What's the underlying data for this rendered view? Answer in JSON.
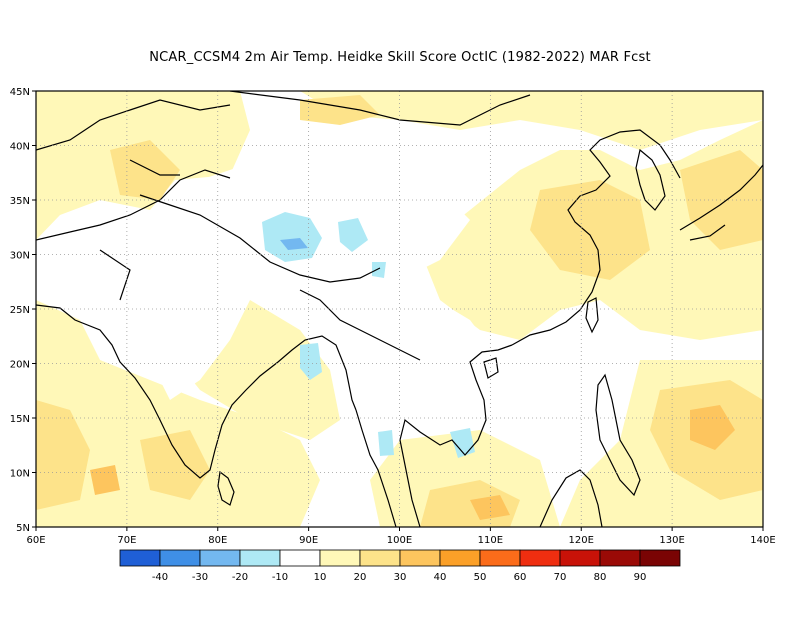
{
  "title": "NCAR_CCSM4  2m Air Temp. Heidke Skill Score OctIC (1982-2022) MAR Fcst",
  "map": {
    "lon_range": [
      60,
      140
    ],
    "lat_range": [
      5,
      45
    ],
    "lon_ticks": [
      "60E",
      "70E",
      "80E",
      "90E",
      "100E",
      "110E",
      "120E",
      "130E",
      "140E"
    ],
    "lat_ticks": [
      "45N",
      "40N",
      "35N",
      "30N",
      "25N",
      "20N",
      "15N",
      "10N",
      "5N"
    ],
    "grid": "dotted"
  },
  "colorbar": {
    "colors": [
      "#1f5fd6",
      "#3f8fe6",
      "#73b8f0",
      "#aee9f5",
      "#ffffff",
      "#fff8b8",
      "#fde38a",
      "#fdc55e",
      "#fba028",
      "#fb6c1a",
      "#ef2e10",
      "#c81208",
      "#9a0a06",
      "#7a0404"
    ],
    "labels": [
      "-40",
      "-30",
      "-20",
      "-10",
      "10",
      "20",
      "30",
      "40",
      "50",
      "60",
      "70",
      "80",
      "90"
    ]
  },
  "colors": {
    "score_10_20": "#fff8b8",
    "score_20_30": "#fde38a",
    "score_30_40": "#fdc55e",
    "score_neg10_neg20": "#aee9f5",
    "score_neg20_neg30": "#73b8f0",
    "score_neg30_neg40": "#3f8fe6"
  }
}
